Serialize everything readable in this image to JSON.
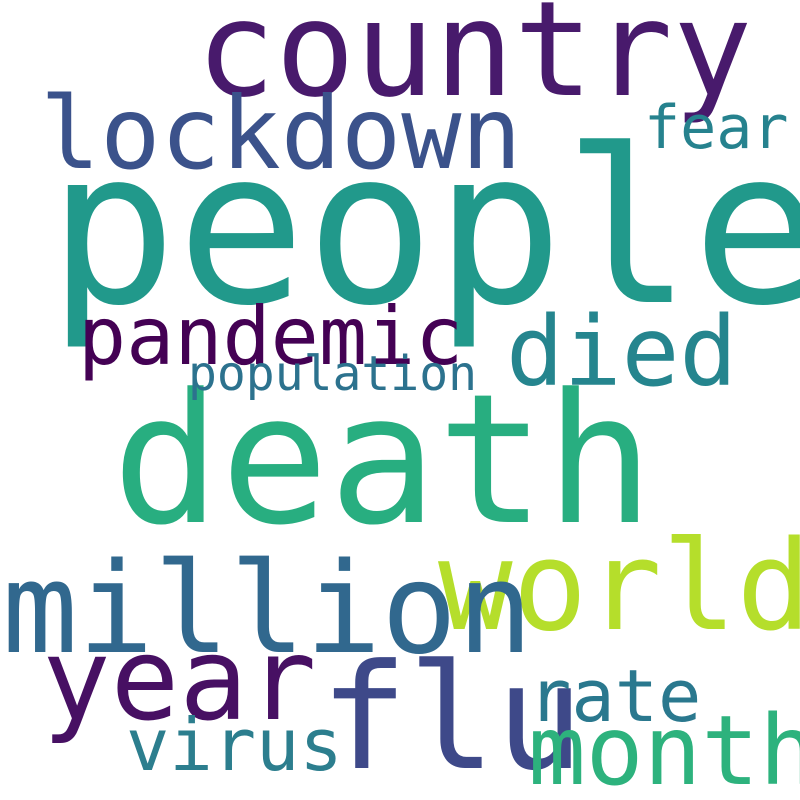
{
  "background": "#ffffff",
  "words": [
    {
      "key": "people",
      "text": "people",
      "color": "#21998b"
    },
    {
      "key": "death",
      "text": "death",
      "color": "#28ae80"
    },
    {
      "key": "country",
      "text": "country",
      "color": "#481a6c"
    },
    {
      "key": "lockdown",
      "text": "lockdown",
      "color": "#3b528b"
    },
    {
      "key": "fear",
      "text": "fear",
      "color": "#26828e"
    },
    {
      "key": "pandemic",
      "text": "pandemic",
      "color": "#440154"
    },
    {
      "key": "died",
      "text": "died",
      "color": "#25858e"
    },
    {
      "key": "population",
      "text": "population",
      "color": "#2c728e"
    },
    {
      "key": "world",
      "text": "world",
      "color": "#b5de2b"
    },
    {
      "key": "million",
      "text": "million",
      "color": "#31688e"
    },
    {
      "key": "year",
      "text": "year",
      "color": "#471063"
    },
    {
      "key": "flu",
      "text": "flu",
      "color": "#3e4989"
    },
    {
      "key": "rate",
      "text": "rate",
      "color": "#2a788e"
    },
    {
      "key": "virus",
      "text": "virus",
      "color": "#2c7e8e"
    },
    {
      "key": "month",
      "text": "month",
      "color": "#2db27d"
    }
  ]
}
